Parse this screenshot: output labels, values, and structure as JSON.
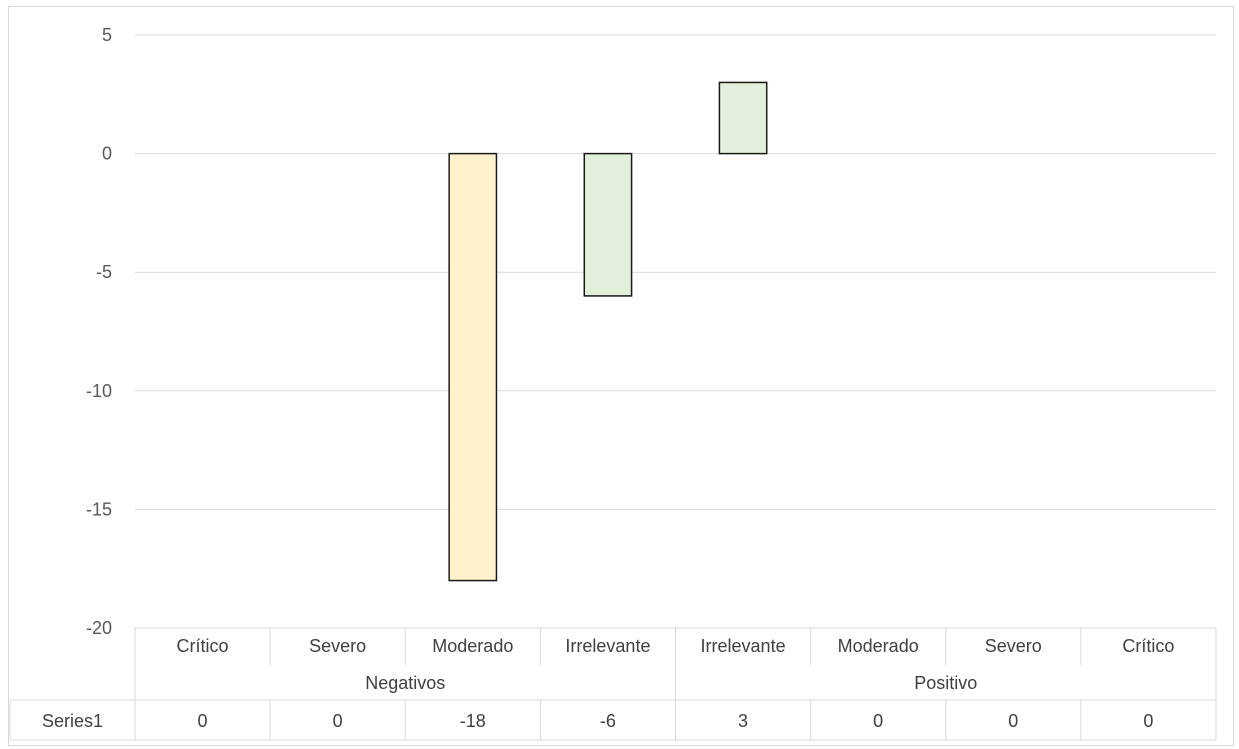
{
  "chart_data": {
    "type": "bar",
    "categories": [
      "Crítico",
      "Severo",
      "Moderado",
      "Irrelevante",
      "Irrelevante",
      "Moderado",
      "Severo",
      "Crítico"
    ],
    "groups": [
      {
        "label": "Negativos",
        "span": [
          0,
          3
        ]
      },
      {
        "label": "Positivo",
        "span": [
          4,
          7
        ]
      }
    ],
    "series": [
      {
        "name": "Series1",
        "values": [
          0,
          0,
          -18,
          -6,
          3,
          0,
          0,
          0
        ]
      }
    ],
    "colors": [
      "#ffffff",
      "#ffffff",
      "#fff2cc",
      "#e2efda",
      "#e2efda",
      "#ffffff",
      "#ffffff",
      "#ffffff"
    ],
    "yticks": [
      "5",
      "0",
      "-5",
      "-10",
      "-15",
      "-20"
    ],
    "ylim": [
      -20,
      5
    ],
    "grid": true,
    "data_table": true,
    "legend": "none"
  }
}
